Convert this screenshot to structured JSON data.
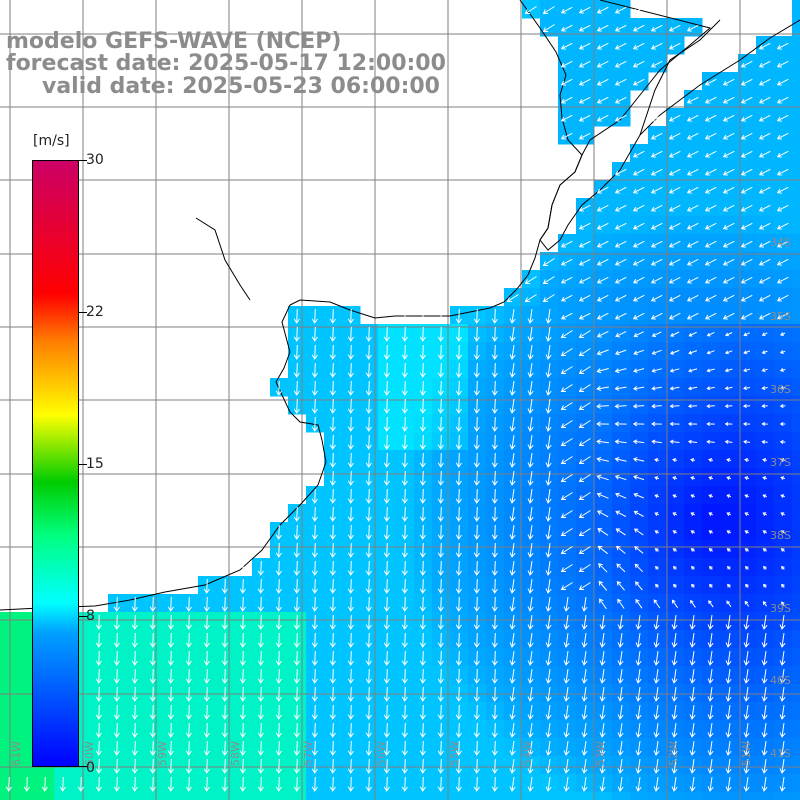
{
  "title": {
    "line1": "modelo GEFS-WAVE (NCEP)",
    "line2": "forecast date: 2025-05-17 12:00:00",
    "line3": "valid date: 2025-05-23 06:00:00"
  },
  "colorbar": {
    "unit": "[m/s]",
    "ticks": [
      "30",
      "22",
      "15",
      "8",
      "0"
    ],
    "tick_values": [
      30,
      22,
      15,
      8,
      0
    ],
    "max": 30,
    "min": 0
  },
  "map": {
    "lat_labels": [
      "34S",
      "35S",
      "36S",
      "37S",
      "38S",
      "39S",
      "40S",
      "41S"
    ],
    "lon_labels": [
      "61W",
      "60W",
      "59W",
      "58W",
      "57W",
      "56W",
      "55W",
      "54W",
      "53W",
      "52W",
      "51W"
    ],
    "lon_range": [
      -61.5,
      -50.6
    ],
    "lat_range": [
      -30.9,
      -41.5
    ],
    "colors": {
      "coastline": "#000000",
      "grid": "#7f7f7f",
      "land": "#ffffff",
      "arrows": "#ffffff",
      "axis_label": "#8c8c8c"
    }
  }
}
